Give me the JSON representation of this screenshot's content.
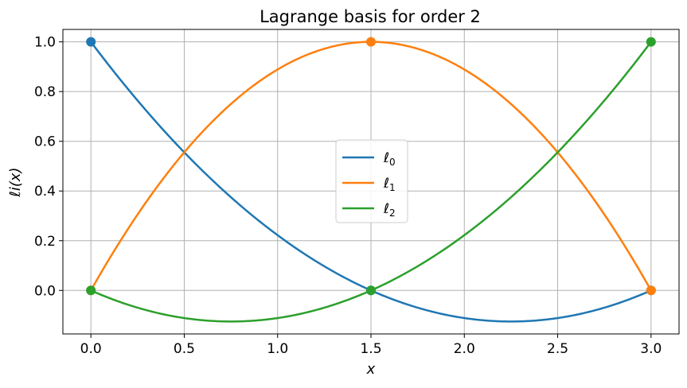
{
  "chart_data": {
    "type": "line",
    "title": "Lagrange basis for order 2",
    "xlabel": "x",
    "ylabel": "ℓi(x)",
    "xlim": [
      -0.15,
      3.15
    ],
    "ylim": [
      -0.175,
      1.05
    ],
    "xticks": [
      0.0,
      0.5,
      1.0,
      1.5,
      2.0,
      2.5,
      3.0
    ],
    "xtick_labels": [
      "0.0",
      "0.5",
      "1.0",
      "1.5",
      "2.0",
      "2.5",
      "3.0"
    ],
    "yticks": [
      0.0,
      0.2,
      0.4,
      0.6,
      0.8,
      1.0
    ],
    "ytick_labels": [
      "0.0",
      "0.2",
      "0.4",
      "0.6",
      "0.8",
      "1.0"
    ],
    "grid": true,
    "legend_position": "center",
    "nodes": [
      0.0,
      1.5,
      3.0
    ],
    "series": [
      {
        "name": "ℓ0",
        "color": "#1f77b4",
        "x": [
          0.0,
          0.25,
          0.5,
          0.75,
          1.0,
          1.25,
          1.5,
          1.75,
          2.0,
          2.25,
          2.5,
          2.75,
          3.0
        ],
        "y": [
          1.0,
          0.764,
          0.556,
          0.375,
          0.222,
          0.097,
          0.0,
          -0.069,
          -0.111,
          -0.125,
          -0.111,
          -0.069,
          0.0
        ],
        "markers": [
          [
            0.0,
            1.0
          ],
          [
            1.5,
            0.0
          ],
          [
            3.0,
            0.0
          ]
        ]
      },
      {
        "name": "ℓ1",
        "color": "#ff7f0e",
        "x": [
          0.0,
          0.25,
          0.5,
          0.75,
          1.0,
          1.25,
          1.5,
          1.75,
          2.0,
          2.25,
          2.5,
          2.75,
          3.0
        ],
        "y": [
          0.0,
          0.306,
          0.556,
          0.75,
          0.889,
          0.972,
          1.0,
          0.972,
          0.889,
          0.75,
          0.556,
          0.306,
          0.0
        ],
        "markers": [
          [
            0.0,
            0.0
          ],
          [
            1.5,
            1.0
          ],
          [
            3.0,
            0.0
          ]
        ]
      },
      {
        "name": "ℓ2",
        "color": "#2ca02c",
        "x": [
          0.0,
          0.25,
          0.5,
          0.75,
          1.0,
          1.25,
          1.5,
          1.75,
          2.0,
          2.25,
          2.5,
          2.75,
          3.0
        ],
        "y": [
          0.0,
          -0.069,
          -0.111,
          -0.125,
          -0.111,
          -0.069,
          0.0,
          0.097,
          0.222,
          0.375,
          0.556,
          0.764,
          1.0
        ],
        "markers": [
          [
            0.0,
            0.0
          ],
          [
            1.5,
            0.0
          ],
          [
            3.0,
            1.0
          ]
        ]
      }
    ]
  }
}
